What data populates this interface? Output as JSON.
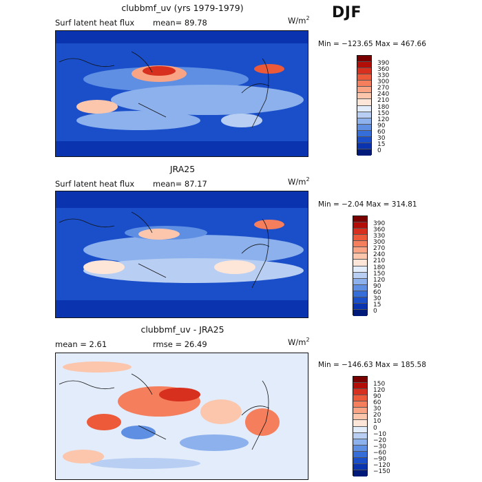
{
  "season": "DJF",
  "panels": [
    {
      "title": "clubbmf_uv (yrs 1979-1979)",
      "label_left": "Surf latent heat flux",
      "stat1": "mean=  89.78",
      "stat2": "",
      "units_base": "W/m",
      "units_exp": "2",
      "minmax": "Min = −123.65  Max = 467.66",
      "colorbar_ticks": [
        "390",
        "360",
        "330",
        "300",
        "270",
        "240",
        "210",
        "180",
        "150",
        "120",
        "90",
        "60",
        "30",
        "15",
        "0"
      ]
    },
    {
      "title": "JRA25",
      "label_left": "Surf latent heat flux",
      "stat1": "mean=  87.17",
      "stat2": "",
      "units_base": "W/m",
      "units_exp": "2",
      "minmax": "Min =   −2.04  Max = 314.81",
      "colorbar_ticks": [
        "390",
        "360",
        "330",
        "300",
        "270",
        "240",
        "210",
        "180",
        "150",
        "120",
        "90",
        "60",
        "30",
        "15",
        "0"
      ]
    },
    {
      "title": "clubbmf_uv - JRA25",
      "label_left": "mean =    2.61",
      "stat1": "",
      "stat2": "rmse =   26.49",
      "units_base": "W/m",
      "units_exp": "2",
      "minmax": "Min = −146.63  Max = 185.58",
      "colorbar_ticks": [
        "150",
        "120",
        "90",
        "60",
        "30",
        "20",
        "10",
        "0",
        "−10",
        "−20",
        "−30",
        "−60",
        "−90",
        "−120",
        "−150"
      ]
    }
  ],
  "colors": {
    "abs_scale": [
      "#7a0000",
      "#b30d08",
      "#d7301f",
      "#ec5a3a",
      "#f57e5c",
      "#f9a484",
      "#fbc6ac",
      "#fde6d8",
      "#e3ecfa",
      "#b8cff3",
      "#8cb1ec",
      "#5f8fe3",
      "#356ed8",
      "#1a4fc9",
      "#0a33b0",
      "#001a7a"
    ],
    "diff_scale": [
      "#7a0000",
      "#b30d08",
      "#d7301f",
      "#ec5a3a",
      "#f57e5c",
      "#f9a484",
      "#fbc6ac",
      "#fde6d8",
      "#e3ecfa",
      "#b8cff3",
      "#8cb1ec",
      "#5f8fe3",
      "#356ed8",
      "#1a4fc9",
      "#0a33b0",
      "#001a7a"
    ]
  }
}
